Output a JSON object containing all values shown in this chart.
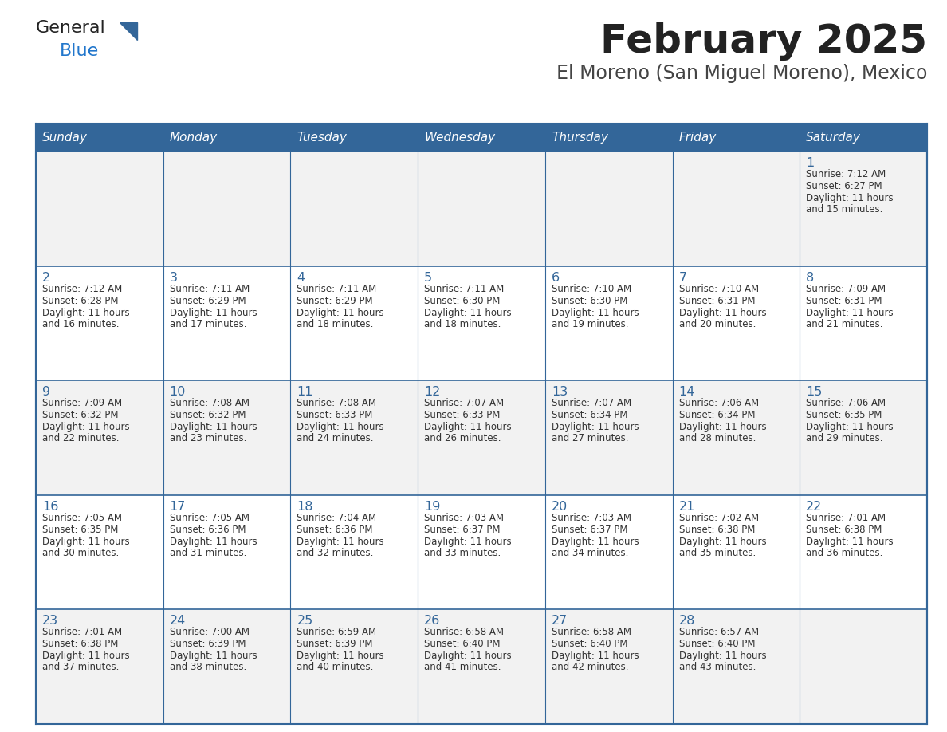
{
  "title": "February 2025",
  "subtitle": "El Moreno (San Miguel Moreno), Mexico",
  "days_of_week": [
    "Sunday",
    "Monday",
    "Tuesday",
    "Wednesday",
    "Thursday",
    "Friday",
    "Saturday"
  ],
  "header_bg": "#336699",
  "header_text_color": "#ffffff",
  "cell_bg_odd": "#f2f2f2",
  "cell_bg_even": "#ffffff",
  "border_color": "#336699",
  "title_color": "#222222",
  "subtitle_color": "#444444",
  "day_number_color": "#336699",
  "cell_text_color": "#333333",
  "logo_text_color": "#222222",
  "logo_blue_color": "#2277cc",
  "logo_triangle_color": "#336699",
  "calendar_data": [
    [
      null,
      null,
      null,
      null,
      null,
      null,
      {
        "day": "1",
        "sunrise": "7:12 AM",
        "sunset": "6:27 PM",
        "daylight_line1": "Daylight: 11 hours",
        "daylight_line2": "and 15 minutes."
      }
    ],
    [
      {
        "day": "2",
        "sunrise": "7:12 AM",
        "sunset": "6:28 PM",
        "daylight_line1": "Daylight: 11 hours",
        "daylight_line2": "and 16 minutes."
      },
      {
        "day": "3",
        "sunrise": "7:11 AM",
        "sunset": "6:29 PM",
        "daylight_line1": "Daylight: 11 hours",
        "daylight_line2": "and 17 minutes."
      },
      {
        "day": "4",
        "sunrise": "7:11 AM",
        "sunset": "6:29 PM",
        "daylight_line1": "Daylight: 11 hours",
        "daylight_line2": "and 18 minutes."
      },
      {
        "day": "5",
        "sunrise": "7:11 AM",
        "sunset": "6:30 PM",
        "daylight_line1": "Daylight: 11 hours",
        "daylight_line2": "and 18 minutes."
      },
      {
        "day": "6",
        "sunrise": "7:10 AM",
        "sunset": "6:30 PM",
        "daylight_line1": "Daylight: 11 hours",
        "daylight_line2": "and 19 minutes."
      },
      {
        "day": "7",
        "sunrise": "7:10 AM",
        "sunset": "6:31 PM",
        "daylight_line1": "Daylight: 11 hours",
        "daylight_line2": "and 20 minutes."
      },
      {
        "day": "8",
        "sunrise": "7:09 AM",
        "sunset": "6:31 PM",
        "daylight_line1": "Daylight: 11 hours",
        "daylight_line2": "and 21 minutes."
      }
    ],
    [
      {
        "day": "9",
        "sunrise": "7:09 AM",
        "sunset": "6:32 PM",
        "daylight_line1": "Daylight: 11 hours",
        "daylight_line2": "and 22 minutes."
      },
      {
        "day": "10",
        "sunrise": "7:08 AM",
        "sunset": "6:32 PM",
        "daylight_line1": "Daylight: 11 hours",
        "daylight_line2": "and 23 minutes."
      },
      {
        "day": "11",
        "sunrise": "7:08 AM",
        "sunset": "6:33 PM",
        "daylight_line1": "Daylight: 11 hours",
        "daylight_line2": "and 24 minutes."
      },
      {
        "day": "12",
        "sunrise": "7:07 AM",
        "sunset": "6:33 PM",
        "daylight_line1": "Daylight: 11 hours",
        "daylight_line2": "and 26 minutes."
      },
      {
        "day": "13",
        "sunrise": "7:07 AM",
        "sunset": "6:34 PM",
        "daylight_line1": "Daylight: 11 hours",
        "daylight_line2": "and 27 minutes."
      },
      {
        "day": "14",
        "sunrise": "7:06 AM",
        "sunset": "6:34 PM",
        "daylight_line1": "Daylight: 11 hours",
        "daylight_line2": "and 28 minutes."
      },
      {
        "day": "15",
        "sunrise": "7:06 AM",
        "sunset": "6:35 PM",
        "daylight_line1": "Daylight: 11 hours",
        "daylight_line2": "and 29 minutes."
      }
    ],
    [
      {
        "day": "16",
        "sunrise": "7:05 AM",
        "sunset": "6:35 PM",
        "daylight_line1": "Daylight: 11 hours",
        "daylight_line2": "and 30 minutes."
      },
      {
        "day": "17",
        "sunrise": "7:05 AM",
        "sunset": "6:36 PM",
        "daylight_line1": "Daylight: 11 hours",
        "daylight_line2": "and 31 minutes."
      },
      {
        "day": "18",
        "sunrise": "7:04 AM",
        "sunset": "6:36 PM",
        "daylight_line1": "Daylight: 11 hours",
        "daylight_line2": "and 32 minutes."
      },
      {
        "day": "19",
        "sunrise": "7:03 AM",
        "sunset": "6:37 PM",
        "daylight_line1": "Daylight: 11 hours",
        "daylight_line2": "and 33 minutes."
      },
      {
        "day": "20",
        "sunrise": "7:03 AM",
        "sunset": "6:37 PM",
        "daylight_line1": "Daylight: 11 hours",
        "daylight_line2": "and 34 minutes."
      },
      {
        "day": "21",
        "sunrise": "7:02 AM",
        "sunset": "6:38 PM",
        "daylight_line1": "Daylight: 11 hours",
        "daylight_line2": "and 35 minutes."
      },
      {
        "day": "22",
        "sunrise": "7:01 AM",
        "sunset": "6:38 PM",
        "daylight_line1": "Daylight: 11 hours",
        "daylight_line2": "and 36 minutes."
      }
    ],
    [
      {
        "day": "23",
        "sunrise": "7:01 AM",
        "sunset": "6:38 PM",
        "daylight_line1": "Daylight: 11 hours",
        "daylight_line2": "and 37 minutes."
      },
      {
        "day": "24",
        "sunrise": "7:00 AM",
        "sunset": "6:39 PM",
        "daylight_line1": "Daylight: 11 hours",
        "daylight_line2": "and 38 minutes."
      },
      {
        "day": "25",
        "sunrise": "6:59 AM",
        "sunset": "6:39 PM",
        "daylight_line1": "Daylight: 11 hours",
        "daylight_line2": "and 40 minutes."
      },
      {
        "day": "26",
        "sunrise": "6:58 AM",
        "sunset": "6:40 PM",
        "daylight_line1": "Daylight: 11 hours",
        "daylight_line2": "and 41 minutes."
      },
      {
        "day": "27",
        "sunrise": "6:58 AM",
        "sunset": "6:40 PM",
        "daylight_line1": "Daylight: 11 hours",
        "daylight_line2": "and 42 minutes."
      },
      {
        "day": "28",
        "sunrise": "6:57 AM",
        "sunset": "6:40 PM",
        "daylight_line1": "Daylight: 11 hours",
        "daylight_line2": "and 43 minutes."
      },
      null
    ]
  ]
}
